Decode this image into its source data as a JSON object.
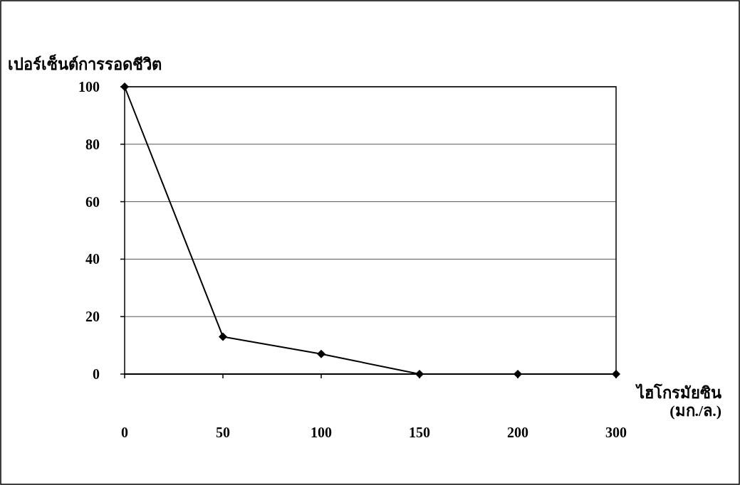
{
  "chart_data": {
    "type": "line",
    "xlabel": "ไฮโกรมัยซิน (มก./ล.)",
    "ylabel": "เปอร์เซ็นต์การรอดชีวิต",
    "categories": [
      "0",
      "50",
      "100",
      "150",
      "200",
      "300"
    ],
    "values": [
      100,
      13,
      7,
      0,
      0,
      0
    ],
    "color": "#000000",
    "ylim": [
      0,
      100
    ],
    "yticks": [
      0,
      20,
      40,
      60,
      80,
      100
    ],
    "grid": "y",
    "marker": "diamond",
    "line_style": "solid"
  }
}
